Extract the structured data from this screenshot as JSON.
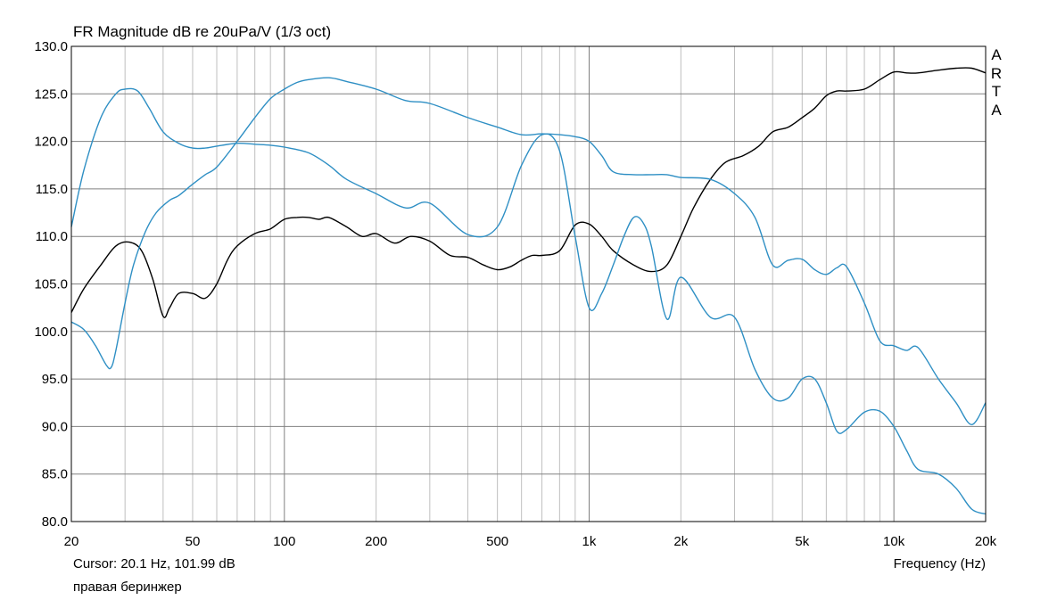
{
  "header": {
    "title": "FR Magnitude dB re 20uPa/V (1/3 oct)",
    "brand_letters": [
      "A",
      "R",
      "T",
      "A"
    ]
  },
  "footer": {
    "cursor_readout": "Cursor: 20.1 Hz, 101.99 dB",
    "caption": "правая беринжер",
    "x_axis_label": "Frequency (Hz)"
  },
  "chart_data": {
    "type": "line",
    "title": "FR Magnitude dB re 20uPa/V (1/3 oct)",
    "xlabel": "Frequency (Hz)",
    "ylabel": "",
    "x_scale": "log",
    "xlim": [
      20,
      20000
    ],
    "ylim": [
      80,
      130
    ],
    "grid": true,
    "x_ticks": [
      {
        "value": 20,
        "label": "20"
      },
      {
        "value": 50,
        "label": "50"
      },
      {
        "value": 100,
        "label": "100"
      },
      {
        "value": 200,
        "label": "200"
      },
      {
        "value": 500,
        "label": "500"
      },
      {
        "value": 1000,
        "label": "1k"
      },
      {
        "value": 2000,
        "label": "2k"
      },
      {
        "value": 5000,
        "label": "5k"
      },
      {
        "value": 10000,
        "label": "10k"
      },
      {
        "value": 20000,
        "label": "20k"
      }
    ],
    "y_ticks": [
      {
        "value": 130,
        "label": "130.0"
      },
      {
        "value": 125,
        "label": "125.0"
      },
      {
        "value": 120,
        "label": "120.0"
      },
      {
        "value": 115,
        "label": "115.0"
      },
      {
        "value": 110,
        "label": "110.0"
      },
      {
        "value": 105,
        "label": "105.0"
      },
      {
        "value": 100,
        "label": "100.0"
      },
      {
        "value": 95,
        "label": "95.0"
      },
      {
        "value": 90,
        "label": "90.0"
      },
      {
        "value": 85,
        "label": "85.0"
      },
      {
        "value": 80,
        "label": "80.0"
      }
    ],
    "colors": {
      "black_series": "#000000",
      "blue_series": "#2e8fc4",
      "grid_minor": "#bfbfbf",
      "grid_major": "#808080"
    },
    "series": [
      {
        "color": "#000000",
        "x": [
          20,
          22,
          25,
          28,
          31,
          34,
          37,
          40,
          42,
          45,
          50,
          55,
          60,
          65,
          70,
          80,
          90,
          100,
          110,
          120,
          130,
          140,
          160,
          180,
          200,
          230,
          260,
          300,
          350,
          400,
          450,
          500,
          550,
          600,
          650,
          700,
          800,
          900,
          1000,
          1100,
          1200,
          1400,
          1600,
          1800,
          2000,
          2200,
          2500,
          2800,
          3200,
          3600,
          4000,
          4500,
          5000,
          5500,
          6000,
          6500,
          7000,
          8000,
          9000,
          10000,
          11000,
          12000,
          14000,
          16000,
          18000,
          20000
        ],
        "y": [
          102,
          104.5,
          107,
          109,
          109.4,
          108.5,
          105.5,
          101.6,
          102.5,
          104,
          104,
          103.5,
          105,
          107.5,
          109,
          110.3,
          110.8,
          111.8,
          112,
          112,
          111.8,
          112,
          111,
          110,
          110.3,
          109.3,
          110,
          109.5,
          108,
          107.8,
          107,
          106.5,
          106.8,
          107.5,
          108,
          108,
          108.5,
          111.2,
          111.3,
          110,
          108.5,
          107,
          106.3,
          107,
          110,
          113,
          116,
          117.8,
          118.5,
          119.5,
          121,
          121.5,
          122.5,
          123.5,
          124.8,
          125.3,
          125.3,
          125.5,
          126.5,
          127.3,
          127.2,
          127.2,
          127.5,
          127.7,
          127.7,
          127.2
        ]
      },
      {
        "color": "#2e8fc4",
        "x": [
          20,
          22,
          25,
          28,
          30,
          33,
          36,
          40,
          45,
          50,
          55,
          60,
          70,
          80,
          90,
          100,
          120,
          140,
          160,
          200,
          250,
          300,
          400,
          500,
          600,
          700,
          800,
          900,
          1000,
          1100,
          1200,
          1300,
          1400,
          1500,
          1600,
          1800,
          2000,
          2500,
          3000,
          3500,
          4000,
          4500,
          5000,
          5500,
          6000,
          6500,
          7000,
          8000,
          9000,
          10000,
          11000,
          12000,
          14000,
          16000,
          18000,
          20000
        ],
        "y": [
          111,
          117,
          122.5,
          125,
          125.5,
          125.3,
          123.5,
          121,
          119.8,
          119.3,
          119.3,
          119.5,
          119.8,
          119.7,
          119.6,
          119.4,
          118.8,
          117.5,
          116,
          114.5,
          113,
          113.5,
          110.2,
          111,
          117.5,
          120.7,
          119,
          110,
          102.5,
          104,
          107,
          110,
          112,
          111.5,
          109,
          101.3,
          105.7,
          101.5,
          101.5,
          96,
          93,
          93,
          95,
          95,
          92.5,
          89.5,
          89.7,
          91.5,
          91.6,
          90,
          87.5,
          85.5,
          85,
          83.5,
          81.3,
          80.8
        ]
      },
      {
        "color": "#2e8fc4",
        "x": [
          20,
          22,
          24,
          26,
          27,
          28,
          30,
          32,
          35,
          38,
          42,
          45,
          50,
          55,
          60,
          70,
          80,
          90,
          100,
          110,
          120,
          140,
          160,
          200,
          250,
          300,
          400,
          500,
          600,
          700,
          800,
          900,
          1000,
          1100,
          1200,
          1400,
          1600,
          1800,
          2000,
          2500,
          3000,
          3500,
          4000,
          4500,
          5000,
          5500,
          6000,
          6500,
          7000,
          8000,
          9000,
          10000,
          11000,
          12000,
          14000,
          16000,
          18000,
          20000
        ],
        "y": [
          101,
          100.2,
          98.5,
          96.5,
          96.2,
          98,
          103,
          107,
          110.5,
          112.5,
          113.8,
          114.3,
          115.5,
          116.5,
          117.3,
          120,
          122.5,
          124.5,
          125.5,
          126.2,
          126.5,
          126.7,
          126.3,
          125.5,
          124.3,
          124,
          122.5,
          121.5,
          120.7,
          120.8,
          120.7,
          120.5,
          120,
          118.5,
          116.8,
          116.5,
          116.5,
          116.5,
          116.2,
          116,
          114.5,
          112,
          107,
          107.5,
          107.6,
          106.5,
          106,
          106.7,
          106.8,
          103,
          99,
          98.5,
          98,
          98.3,
          95,
          92.5,
          90.2,
          92.5
        ]
      }
    ]
  }
}
